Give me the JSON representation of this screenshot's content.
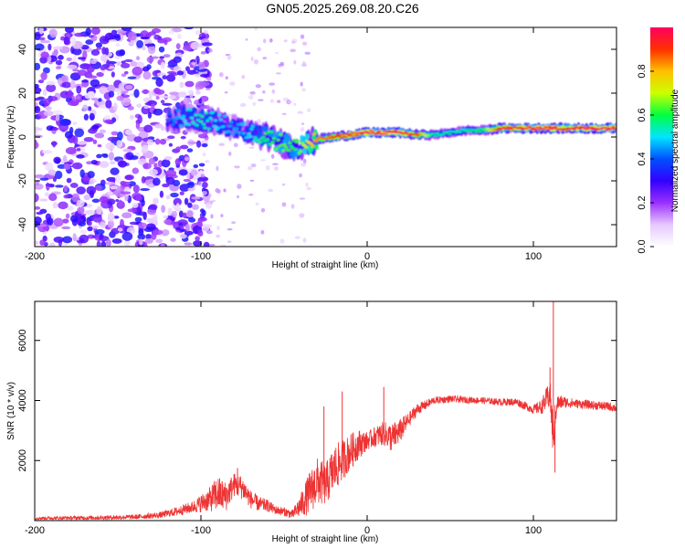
{
  "title": "GN05.2025.269.08.20.C26",
  "chart_data": [
    {
      "type": "heatmap",
      "name": "spectrogram",
      "xlabel": "Height of straight line (km)",
      "ylabel": "Frequency (Hz)",
      "xlim": [
        -200,
        150
      ],
      "ylim": [
        -50,
        50
      ],
      "xticks": [
        -200,
        -100,
        0,
        100
      ],
      "xtick_labels": [
        "-200",
        "-100",
        "0",
        "100"
      ],
      "yticks": [
        -40,
        -20,
        0,
        20,
        40
      ],
      "ytick_labels": [
        "-40",
        "-20",
        "0",
        "20",
        "40"
      ],
      "colorbar": {
        "label": "Normalized spectral amplitude",
        "range": [
          0,
          1
        ],
        "ticks": [
          0.0,
          0.2,
          0.4,
          0.6,
          0.8
        ],
        "tick_labels": [
          "0.0",
          "0.2",
          "0.4",
          "0.6",
          "0.8"
        ],
        "colors": [
          "#ffffff",
          "#e6c8ff",
          "#9b30ff",
          "#3300ff",
          "#0050ff",
          "#00e5ff",
          "#00ff40",
          "#ccff00",
          "#ffc000",
          "#ff3000",
          "#ff0060"
        ]
      },
      "ridge": {
        "x": [
          -120,
          -110,
          -100,
          -90,
          -80,
          -70,
          -60,
          -50,
          -45,
          -40,
          -35,
          -30,
          -20,
          -10,
          0,
          10,
          20,
          30,
          40,
          50,
          60,
          70,
          80,
          90,
          100,
          110,
          120,
          130,
          140,
          150
        ],
        "freq": [
          8,
          9,
          8,
          7,
          4,
          2,
          0,
          -3,
          -5,
          -4,
          -3,
          -1,
          0,
          1,
          2,
          2,
          2,
          1,
          1,
          2,
          3,
          3,
          4,
          4,
          4,
          4,
          4,
          4,
          4,
          4
        ],
        "amplitude": [
          0.35,
          0.45,
          0.5,
          0.45,
          0.4,
          0.45,
          0.55,
          0.6,
          0.55,
          0.6,
          0.7,
          0.8,
          0.85,
          0.9,
          0.95,
          0.95,
          0.95,
          0.85,
          0.5,
          0.5,
          0.5,
          0.55,
          0.9,
          0.9,
          0.95,
          0.95,
          0.9,
          0.95,
          0.95,
          0.95
        ]
      },
      "noise_region": {
        "x_range": [
          -200,
          -105
        ],
        "freq_range": [
          -50,
          50
        ],
        "amplitude": 0.3
      }
    },
    {
      "type": "line",
      "name": "snr",
      "xlabel": "Height of straight line (km)",
      "ylabel": "SNR (10 * v/v)",
      "xlim": [
        -200,
        150
      ],
      "ylim": [
        0,
        7300
      ],
      "xticks": [
        -200,
        -100,
        0,
        100
      ],
      "xtick_labels": [
        "-200",
        "-100",
        "0",
        "100"
      ],
      "yticks": [
        2000,
        4000,
        6000
      ],
      "ytick_labels": [
        "2000",
        "4000",
        "6000"
      ],
      "series": [
        {
          "name": "SNR",
          "color": "#ee3333",
          "x": [
            -200,
            -180,
            -160,
            -140,
            -125,
            -115,
            -105,
            -95,
            -90,
            -85,
            -80,
            -75,
            -70,
            -65,
            -60,
            -55,
            -50,
            -45,
            -40,
            -35,
            -30,
            -25,
            -20,
            -15,
            -10,
            -5,
            0,
            5,
            10,
            15,
            20,
            25,
            30,
            40,
            50,
            60,
            70,
            80,
            90,
            100,
            105,
            110,
            112,
            114,
            118,
            125,
            135,
            145,
            150
          ],
          "y": [
            80,
            90,
            100,
            120,
            180,
            300,
            450,
            700,
            900,
            800,
            1200,
            1100,
            700,
            550,
            500,
            350,
            300,
            200,
            500,
            900,
            1300,
            1200,
            1700,
            2000,
            2300,
            2550,
            2650,
            2800,
            2900,
            2750,
            3000,
            3350,
            3700,
            4000,
            4050,
            4020,
            4000,
            3950,
            3950,
            3700,
            3800,
            4200,
            2700,
            3900,
            3950,
            3900,
            3850,
            3800,
            3750
          ],
          "spread": [
            50,
            60,
            70,
            80,
            100,
            150,
            200,
            400,
            600,
            500,
            400,
            400,
            300,
            250,
            200,
            150,
            150,
            150,
            400,
            700,
            800,
            700,
            800,
            700,
            600,
            500,
            300,
            350,
            400,
            500,
            400,
            250,
            200,
            120,
            120,
            110,
            110,
            120,
            130,
            150,
            250,
            500,
            800,
            300,
            200,
            150,
            150,
            150,
            150
          ]
        }
      ],
      "spikes": [
        {
          "x": -15,
          "y": 4300
        },
        {
          "x": 10,
          "y": 4450
        },
        {
          "x": -26,
          "y": 3800
        },
        {
          "x": 110,
          "y": 5100
        },
        {
          "x": 112,
          "y": 7300
        },
        {
          "x": 113,
          "y": 1600
        },
        {
          "x": -78,
          "y": 1750
        }
      ]
    }
  ]
}
